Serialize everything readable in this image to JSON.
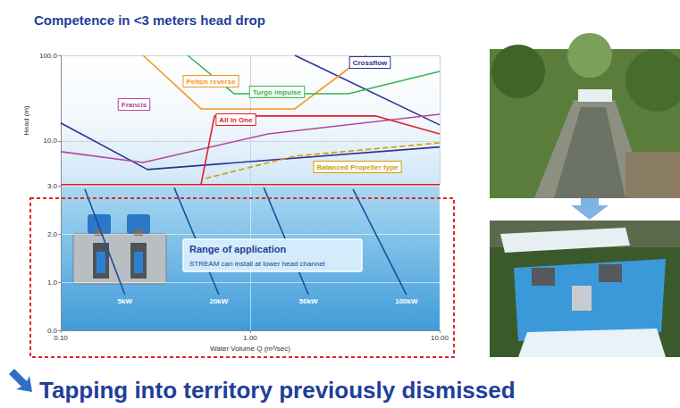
{
  "chart_data": [
    {
      "type": "line",
      "title": "Competence in <3 meters head drop",
      "y_label": "Head (m)",
      "xlim": [
        0.1,
        10
      ],
      "ylim": [
        3,
        100
      ],
      "xticks": [
        0.1,
        1,
        10
      ],
      "yticks": [
        {
          "value": 10,
          "label": "10.0"
        },
        {
          "value": 100,
          "label": "100.0"
        }
      ],
      "log": true,
      "grid": true,
      "tick_labels": "y",
      "marker": "none",
      "series": [
        {
          "name": "Crossflow",
          "color": "#2e3192",
          "x": [
            0.1,
            0.287,
            10,
            null,
            1.72,
            10
          ],
          "values": [
            16.2,
            4.64,
            8.5,
            null,
            100,
            15.4
          ]
        },
        {
          "name": "Pelton reverse",
          "color": "#f7941d",
          "x": [
            0.272,
            0.55,
            1.72,
            4.1
          ],
          "values": [
            100,
            23.7,
            23.7,
            100
          ]
        },
        {
          "name": "Turgo impulse",
          "color": "#39b54a",
          "x": [
            0.467,
            0.823,
            3.3,
            10
          ],
          "values": [
            100,
            35.6,
            35.6,
            64.9
          ]
        },
        {
          "name": "Francis",
          "color": "#b5479b",
          "x": [
            0.1,
            0.272,
            1.24,
            10
          ],
          "values": [
            7.5,
            5.6,
            12.1,
            20.5
          ]
        },
        {
          "name": "All in One",
          "color": "#e41e26",
          "x": [
            0.55,
            0.648,
            4.57,
            10,
            null,
            0.1,
            10
          ],
          "values": [
            3.09,
            19.6,
            19.6,
            12.1,
            null,
            3.09,
            3.09
          ]
        },
        {
          "name": "Balanced Propeller type",
          "color": "#d99a00",
          "line_style": "dashed",
          "x": [
            0.581,
            1.72,
            10
          ],
          "values": [
            3.65,
            6.65,
            9.5
          ]
        }
      ]
    },
    {
      "type": "line",
      "x_label": "Water Volume Q (m³/sec)",
      "xlim": [
        0.1,
        10
      ],
      "ylim": [
        0,
        3
      ],
      "xticks": [
        {
          "value": 0.1,
          "label": "0.10"
        },
        {
          "value": 1,
          "label": "1.00"
        },
        {
          "value": 10,
          "label": "10.00"
        }
      ],
      "yticks": [
        {
          "value": 0,
          "label": "0.0"
        },
        {
          "value": 1,
          "label": "1.0"
        },
        {
          "value": 2,
          "label": "2.0"
        },
        {
          "value": 3,
          "label": "3.0"
        }
      ],
      "log": "x",
      "grid": true,
      "color": "#1b4f9c",
      "annotations": [
        "Range of application",
        "STREAM can install at lower head channel"
      ],
      "series": [
        {
          "name": "5kW",
          "x": [
            0.134,
            0.218
          ],
          "values": [
            2.93,
            0.74
          ]
        },
        {
          "name": "20kW",
          "x": [
            0.397,
            0.683
          ],
          "values": [
            2.96,
            0.74
          ]
        },
        {
          "name": "50kW",
          "x": [
            1.18,
            2.03
          ],
          "values": [
            2.96,
            0.74
          ]
        },
        {
          "name": "100kW",
          "x": [
            3.49,
            6.68
          ],
          "values": [
            2.93,
            0.74
          ]
        }
      ]
    }
  ],
  "headline": "Tapping into territory previously dismissed"
}
